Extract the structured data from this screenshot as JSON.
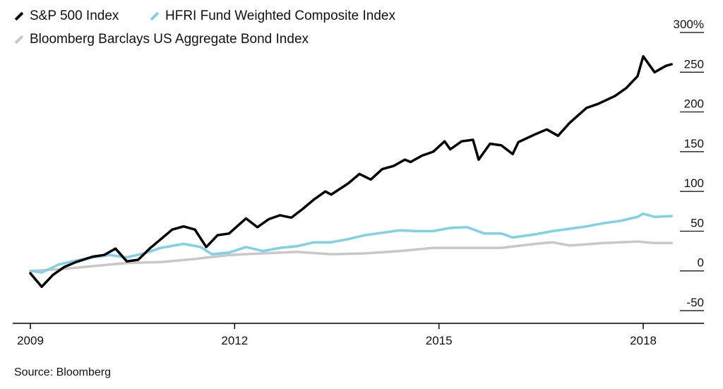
{
  "legend": {
    "sp500": "S&P 500 Index",
    "hfri": "HFRI Fund Weighted Composite Index",
    "bond": "Bloomberg Barclays US Aggregate Bond Index"
  },
  "source": "Source: Bloomberg",
  "chart_data": {
    "type": "line",
    "title": "",
    "xlabel": "",
    "ylabel": "",
    "x_ticks": [
      "2009",
      "2012",
      "2015",
      "2018"
    ],
    "y_ticks": [
      "300%",
      "250",
      "200",
      "150",
      "100",
      "50",
      "0",
      "-50"
    ],
    "xlim": [
      "2009-01",
      "2018-06"
    ],
    "ylim": [
      -50,
      300
    ],
    "grid": "horizontal",
    "legend_position": "top-left",
    "colors": {
      "sp500": "#000000",
      "hfri": "#7fd1e6",
      "bond": "#c8c8c8"
    },
    "series": [
      {
        "name": "S&P 500 Index",
        "key": "sp500",
        "points": [
          [
            "2009-01",
            -3
          ],
          [
            "2009-03",
            -20
          ],
          [
            "2009-05",
            -5
          ],
          [
            "2009-07",
            5
          ],
          [
            "2009-09",
            11
          ],
          [
            "2009-12",
            18
          ],
          [
            "2010-02",
            20
          ],
          [
            "2010-04",
            28
          ],
          [
            "2010-06",
            12
          ],
          [
            "2010-08",
            14
          ],
          [
            "2010-10",
            28
          ],
          [
            "2010-12",
            40
          ],
          [
            "2011-02",
            52
          ],
          [
            "2011-04",
            56
          ],
          [
            "2011-06",
            52
          ],
          [
            "2011-08",
            30
          ],
          [
            "2011-10",
            45
          ],
          [
            "2011-12",
            47
          ],
          [
            "2012-03",
            66
          ],
          [
            "2012-05",
            55
          ],
          [
            "2012-07",
            65
          ],
          [
            "2012-09",
            70
          ],
          [
            "2012-11",
            67
          ],
          [
            "2013-01",
            78
          ],
          [
            "2013-03",
            90
          ],
          [
            "2013-05",
            100
          ],
          [
            "2013-06",
            96
          ],
          [
            "2013-09",
            110
          ],
          [
            "2013-11",
            122
          ],
          [
            "2014-01",
            115
          ],
          [
            "2014-03",
            128
          ],
          [
            "2014-05",
            132
          ],
          [
            "2014-07",
            140
          ],
          [
            "2014-08",
            137
          ],
          [
            "2014-10",
            145
          ],
          [
            "2014-12",
            150
          ],
          [
            "2015-02",
            163
          ],
          [
            "2015-03",
            153
          ],
          [
            "2015-05",
            163
          ],
          [
            "2015-07",
            165
          ],
          [
            "2015-08",
            140
          ],
          [
            "2015-10",
            160
          ],
          [
            "2015-12",
            158
          ],
          [
            "2016-02",
            147
          ],
          [
            "2016-03",
            162
          ],
          [
            "2016-06",
            172
          ],
          [
            "2016-08",
            178
          ],
          [
            "2016-10",
            170
          ],
          [
            "2016-12",
            186
          ],
          [
            "2017-03",
            205
          ],
          [
            "2017-05",
            210
          ],
          [
            "2017-08",
            220
          ],
          [
            "2017-10",
            230
          ],
          [
            "2017-12",
            245
          ],
          [
            "2018-01",
            270
          ],
          [
            "2018-03",
            250
          ],
          [
            "2018-05",
            258
          ],
          [
            "2018-06",
            260
          ]
        ]
      },
      {
        "name": "HFRI Fund Weighted Composite Index",
        "key": "hfri",
        "points": [
          [
            "2009-01",
            0
          ],
          [
            "2009-03",
            -2
          ],
          [
            "2009-06",
            8
          ],
          [
            "2009-09",
            13
          ],
          [
            "2009-12",
            17
          ],
          [
            "2010-03",
            20
          ],
          [
            "2010-06",
            17
          ],
          [
            "2010-09",
            22
          ],
          [
            "2010-12",
            29
          ],
          [
            "2011-04",
            34
          ],
          [
            "2011-07",
            30
          ],
          [
            "2011-09",
            21
          ],
          [
            "2011-12",
            23
          ],
          [
            "2012-03",
            30
          ],
          [
            "2012-06",
            25
          ],
          [
            "2012-09",
            29
          ],
          [
            "2012-12",
            31
          ],
          [
            "2013-03",
            36
          ],
          [
            "2013-06",
            36
          ],
          [
            "2013-09",
            40
          ],
          [
            "2013-12",
            45
          ],
          [
            "2014-03",
            48
          ],
          [
            "2014-06",
            51
          ],
          [
            "2014-09",
            50
          ],
          [
            "2014-12",
            50
          ],
          [
            "2015-03",
            54
          ],
          [
            "2015-06",
            55
          ],
          [
            "2015-09",
            47
          ],
          [
            "2015-12",
            47
          ],
          [
            "2016-02",
            42
          ],
          [
            "2016-06",
            46
          ],
          [
            "2016-09",
            50
          ],
          [
            "2016-12",
            53
          ],
          [
            "2017-03",
            56
          ],
          [
            "2017-06",
            60
          ],
          [
            "2017-09",
            63
          ],
          [
            "2017-12",
            68
          ],
          [
            "2018-01",
            72
          ],
          [
            "2018-03",
            68
          ],
          [
            "2018-06",
            69
          ]
        ]
      },
      {
        "name": "Bloomberg Barclays US Aggregate Bond Index",
        "key": "bond",
        "points": [
          [
            "2009-01",
            0
          ],
          [
            "2009-06",
            2
          ],
          [
            "2009-12",
            6
          ],
          [
            "2010-06",
            10
          ],
          [
            "2010-12",
            11
          ],
          [
            "2011-06",
            15
          ],
          [
            "2011-12",
            20
          ],
          [
            "2012-06",
            22
          ],
          [
            "2012-12",
            24
          ],
          [
            "2013-06",
            21
          ],
          [
            "2013-12",
            22
          ],
          [
            "2014-06",
            25
          ],
          [
            "2014-12",
            29
          ],
          [
            "2015-06",
            29
          ],
          [
            "2015-12",
            29
          ],
          [
            "2016-06",
            34
          ],
          [
            "2016-09",
            36
          ],
          [
            "2016-12",
            32
          ],
          [
            "2017-06",
            35
          ],
          [
            "2017-12",
            37
          ],
          [
            "2018-03",
            35
          ],
          [
            "2018-06",
            35
          ]
        ]
      }
    ]
  }
}
